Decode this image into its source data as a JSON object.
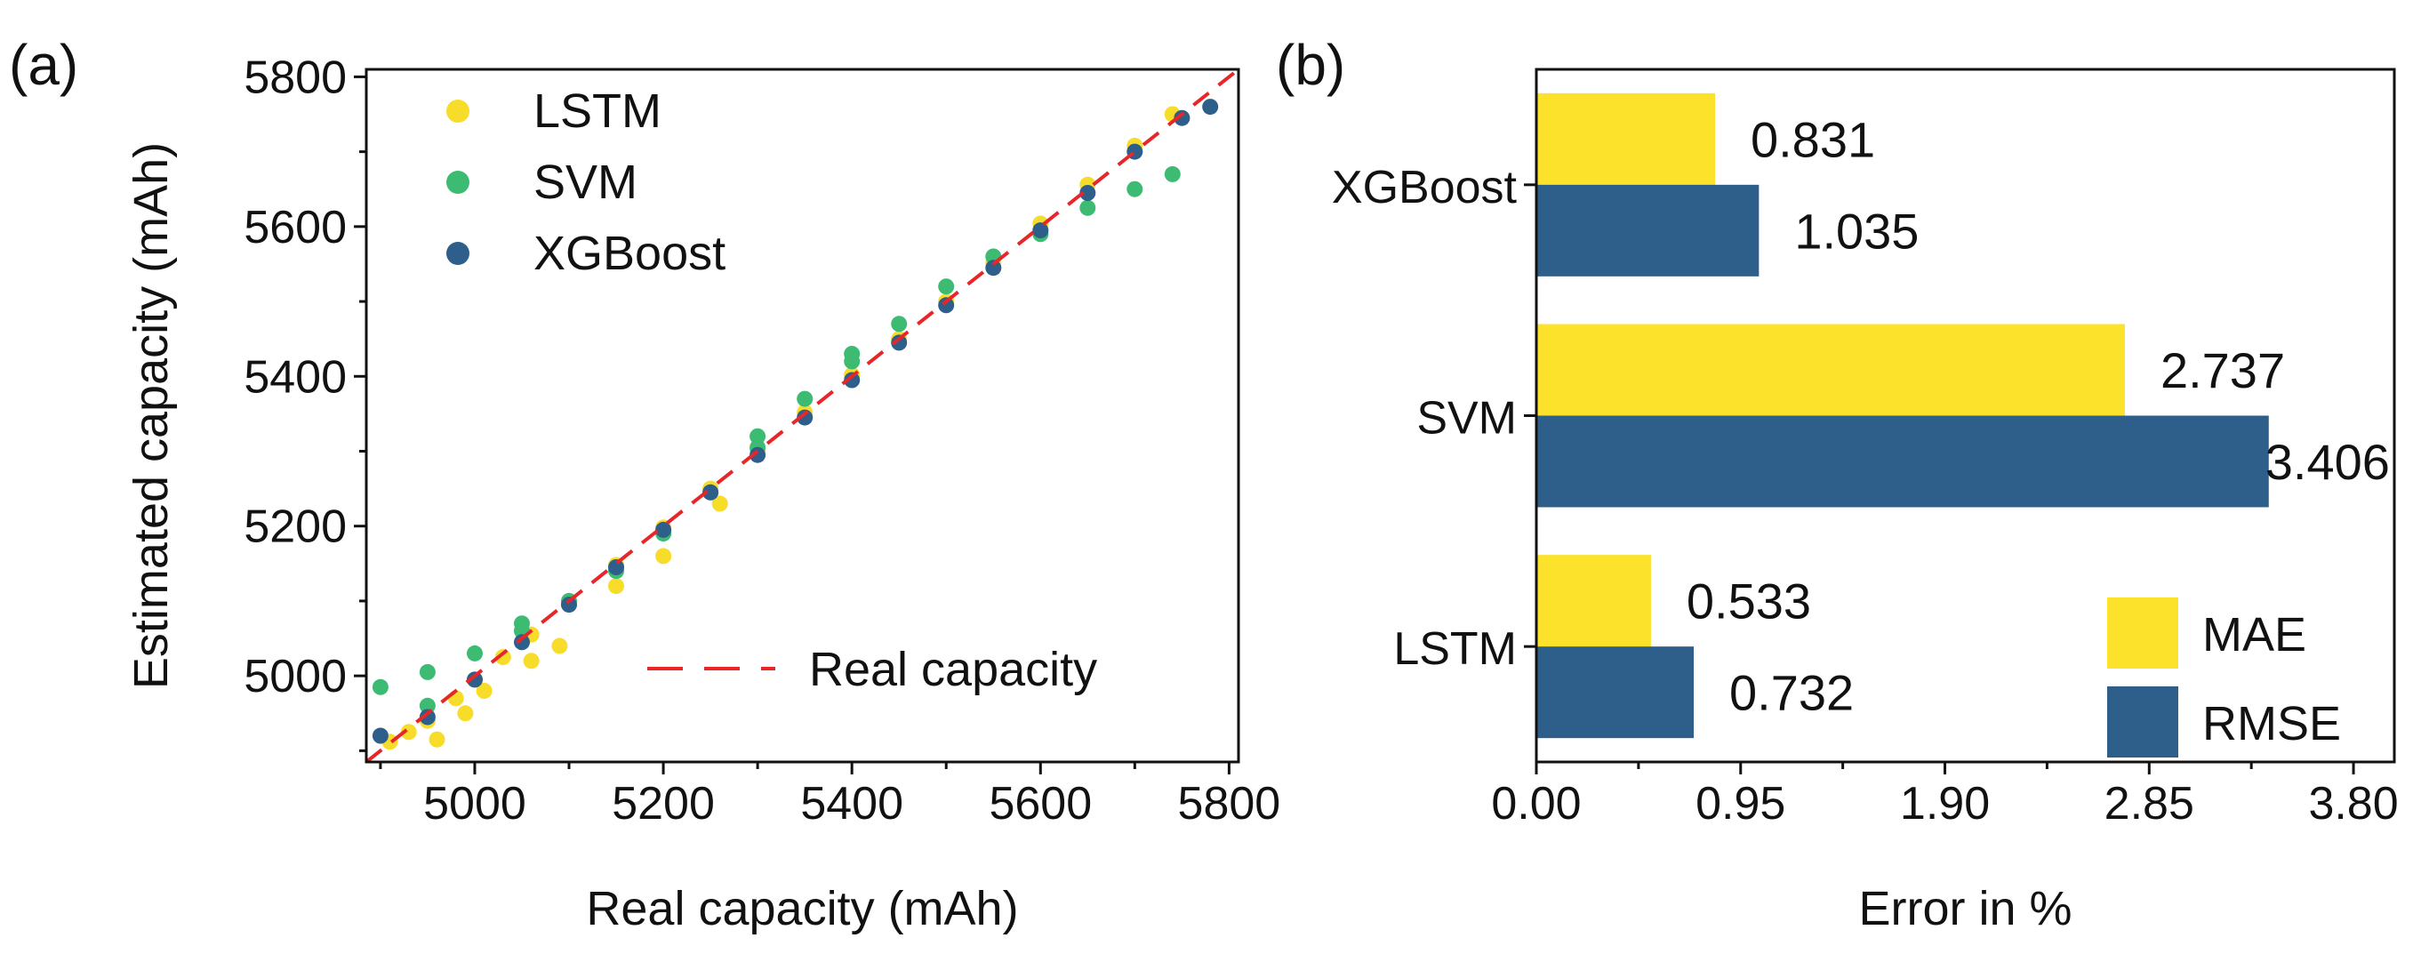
{
  "chart_data": [
    {
      "type": "scatter",
      "panel_label": "(a)",
      "title": "",
      "xlabel": "Real capacity (mAh)",
      "ylabel": "Estimated capacity (mAh)",
      "xlim": [
        4885,
        5810
      ],
      "ylim": [
        4885,
        5810
      ],
      "x_ticks": [
        5000,
        5200,
        5400,
        5600,
        5800
      ],
      "y_ticks": [
        5000,
        5200,
        5400,
        5600,
        5800
      ],
      "x_tick_labels": [
        "5000",
        "5200",
        "5400",
        "5600",
        "5800"
      ],
      "y_tick_labels": [
        "5000",
        "5200",
        "5400",
        "5600",
        "5800"
      ],
      "legend_position": "top-left",
      "series": [
        {
          "name": "LSTM",
          "color": "#f7dc2a",
          "points": [
            [
              4910,
              4912
            ],
            [
              4930,
              4925
            ],
            [
              4950,
              4940
            ],
            [
              4980,
              4970
            ],
            [
              5000,
              4995
            ],
            [
              5030,
              5025
            ],
            [
              5060,
              5055
            ],
            [
              5100,
              5095
            ],
            [
              5150,
              5148
            ],
            [
              5200,
              5198
            ],
            [
              5250,
              5250
            ],
            [
              5300,
              5302
            ],
            [
              5350,
              5352
            ],
            [
              5400,
              5402
            ],
            [
              5450,
              5450
            ],
            [
              5500,
              5500
            ],
            [
              5550,
              5552
            ],
            [
              5600,
              5604
            ],
            [
              5650,
              5656
            ],
            [
              5700,
              5708
            ],
            [
              5740,
              5750
            ],
            [
              4960,
              4915
            ],
            [
              4990,
              4950
            ],
            [
              5010,
              4980
            ],
            [
              5060,
              5020
            ],
            [
              5090,
              5040
            ],
            [
              5150,
              5120
            ],
            [
              5200,
              5160
            ],
            [
              5260,
              5230
            ]
          ]
        },
        {
          "name": "SVM",
          "color": "#3dbb72",
          "points": [
            [
              4900,
              4985
            ],
            [
              4950,
              5005
            ],
            [
              5000,
              5030
            ],
            [
              5050,
              5060
            ],
            [
              5100,
              5100
            ],
            [
              5150,
              5140
            ],
            [
              5200,
              5190
            ],
            [
              5250,
              5245
            ],
            [
              5300,
              5305
            ],
            [
              5350,
              5370
            ],
            [
              5400,
              5420
            ],
            [
              5450,
              5470
            ],
            [
              5500,
              5520
            ],
            [
              5550,
              5560
            ],
            [
              5600,
              5590
            ],
            [
              5650,
              5625
            ],
            [
              5700,
              5650
            ],
            [
              5740,
              5670
            ],
            [
              4950,
              4960
            ],
            [
              5050,
              5070
            ],
            [
              5300,
              5320
            ],
            [
              5400,
              5430
            ]
          ]
        },
        {
          "name": "XGBoost",
          "color": "#2e5e8a",
          "points": [
            [
              4900,
              4920
            ],
            [
              4950,
              4945
            ],
            [
              5000,
              4995
            ],
            [
              5050,
              5045
            ],
            [
              5100,
              5095
            ],
            [
              5150,
              5145
            ],
            [
              5200,
              5195
            ],
            [
              5250,
              5245
            ],
            [
              5300,
              5295
            ],
            [
              5350,
              5345
            ],
            [
              5400,
              5395
            ],
            [
              5450,
              5445
            ],
            [
              5500,
              5495
            ],
            [
              5550,
              5545
            ],
            [
              5600,
              5595
            ],
            [
              5650,
              5645
            ],
            [
              5700,
              5700
            ],
            [
              5750,
              5745
            ],
            [
              5780,
              5760
            ]
          ]
        }
      ],
      "reference_line": {
        "name": "Real capacity",
        "color": "#e8262a",
        "style": "dashed"
      }
    },
    {
      "type": "bar",
      "orientation": "horizontal",
      "panel_label": "(b)",
      "title": "",
      "xlabel": "Error in %",
      "ylabel": "",
      "xlim": [
        0,
        3.99
      ],
      "x_ticks": [
        0.0,
        0.95,
        1.9,
        2.85,
        3.8
      ],
      "x_tick_labels": [
        "0.00",
        "0.95",
        "1.90",
        "2.85",
        "3.80"
      ],
      "categories": [
        "XGBoost",
        "SVM",
        "LSTM"
      ],
      "legend_position": "bottom-right",
      "series": [
        {
          "name": "MAE",
          "color": "#fce22a",
          "values": [
            0.831,
            2.737,
            0.533
          ],
          "labels": [
            "0.831",
            "2.737",
            "0.533"
          ]
        },
        {
          "name": "RMSE",
          "color": "#2e5e8a",
          "values": [
            1.035,
            3.406,
            0.732
          ],
          "labels": [
            "1.035",
            "3.406",
            "0.732"
          ]
        }
      ]
    }
  ]
}
